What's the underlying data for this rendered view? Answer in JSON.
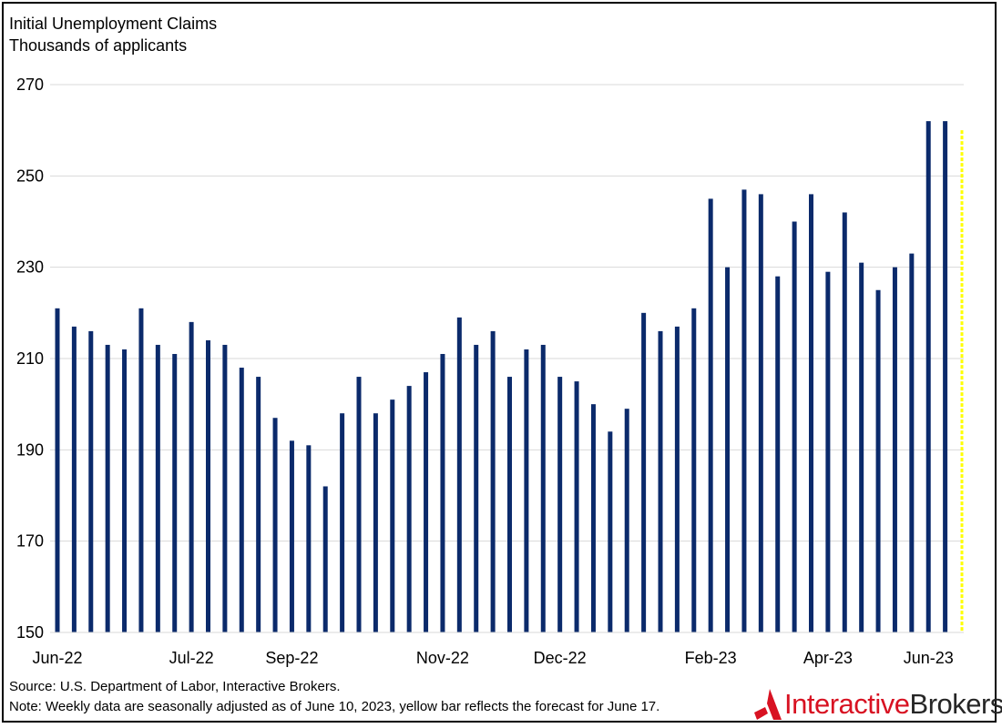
{
  "chart_data": {
    "type": "bar",
    "title": "Initial Unemployment Claims",
    "subtitle": "Thousands of applicants",
    "ylim": [
      150,
      270
    ],
    "yticks": [
      150,
      170,
      190,
      210,
      230,
      250,
      270
    ],
    "x_tick_labels": [
      "Jun-22",
      "Jul-22",
      "Sep-22",
      "Nov-22",
      "Dec-22",
      "Feb-23",
      "Apr-23",
      "Jun-23"
    ],
    "x_tick_indices": [
      0,
      8,
      14,
      23,
      30,
      39,
      46,
      52
    ],
    "values": [
      221,
      217,
      216,
      213,
      212,
      221,
      213,
      211,
      218,
      214,
      213,
      208,
      206,
      197,
      192,
      191,
      182,
      198,
      206,
      198,
      201,
      204,
      207,
      211,
      219,
      213,
      216,
      206,
      212,
      213,
      206,
      205,
      200,
      194,
      199,
      220,
      216,
      217,
      221,
      245,
      230,
      247,
      246,
      228,
      240,
      246,
      229,
      242,
      231,
      225,
      230,
      233,
      262,
      262
    ],
    "forecast": {
      "value": 260,
      "color": "#ffff00"
    },
    "bar_color": "#0b2a6b",
    "grid": true
  },
  "footer": {
    "source": "Source: U.S. Department of Labor, Interactive Brokers.",
    "note": "Note: Weekly data are seasonally adjusted as of June 10, 2023, yellow bar reflects the forecast for June 17."
  },
  "logo": {
    "part1": "Interactive",
    "part2": "Brokers",
    "color": "#d81222"
  }
}
